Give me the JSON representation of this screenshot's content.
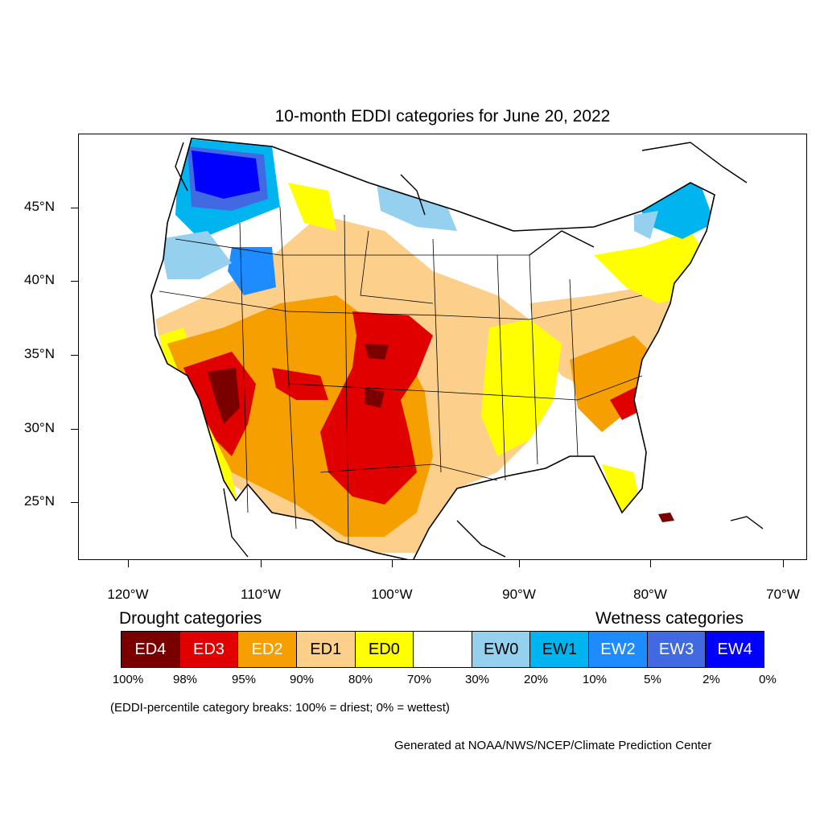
{
  "title": "10-month EDDI categories for June 20, 2022",
  "map": {
    "lat_labels": [
      "45°N",
      "40°N",
      "35°N",
      "30°N",
      "25°N"
    ],
    "lon_labels": [
      "120°W",
      "110°W",
      "100°W",
      "90°W",
      "80°W",
      "70°W"
    ],
    "category_colors": {
      "ED4": "#7a0000",
      "ED3": "#e00000",
      "ED2": "#f5a000",
      "ED1": "#fcd08a",
      "ED0": "#ffff00",
      "neutral": "#ffffff",
      "EW0": "#96d0ef",
      "EW1": "#00b4f0",
      "EW2": "#1e8cff",
      "EW3": "#4169e1",
      "EW4": "#0000ff"
    }
  },
  "legend": {
    "drought_heading": "Drought categories",
    "wetness_heading": "Wetness categories",
    "categories": [
      {
        "label": "ED4",
        "color": "#7a0000",
        "text_color": "#ffffff"
      },
      {
        "label": "ED3",
        "color": "#e00000",
        "text_color": "#ffffff"
      },
      {
        "label": "ED2",
        "color": "#f5a000",
        "text_color": "#ffffff"
      },
      {
        "label": "ED1",
        "color": "#fcd08a",
        "text_color": "#000000"
      },
      {
        "label": "ED0",
        "color": "#ffff00",
        "text_color": "#000000"
      },
      {
        "label": "",
        "color": "#ffffff",
        "text_color": "#000000"
      },
      {
        "label": "EW0",
        "color": "#96d0ef",
        "text_color": "#000000"
      },
      {
        "label": "EW1",
        "color": "#00b4f0",
        "text_color": "#000000"
      },
      {
        "label": "EW2",
        "color": "#1e8cff",
        "text_color": "#ffffff"
      },
      {
        "label": "EW3",
        "color": "#4169e1",
        "text_color": "#ffffff"
      },
      {
        "label": "EW4",
        "color": "#0000ff",
        "text_color": "#ffffff"
      }
    ],
    "breaks": [
      "100%",
      "98%",
      "95%",
      "90%",
      "80%",
      "70%",
      "30%",
      "20%",
      "10%",
      "5%",
      "2%",
      "0%"
    ]
  },
  "note": "(EDDI-percentile category breaks: 100% = driest; 0% = wettest)",
  "credit": "Generated at NOAA/NWS/NCEP/Climate Prediction Center"
}
